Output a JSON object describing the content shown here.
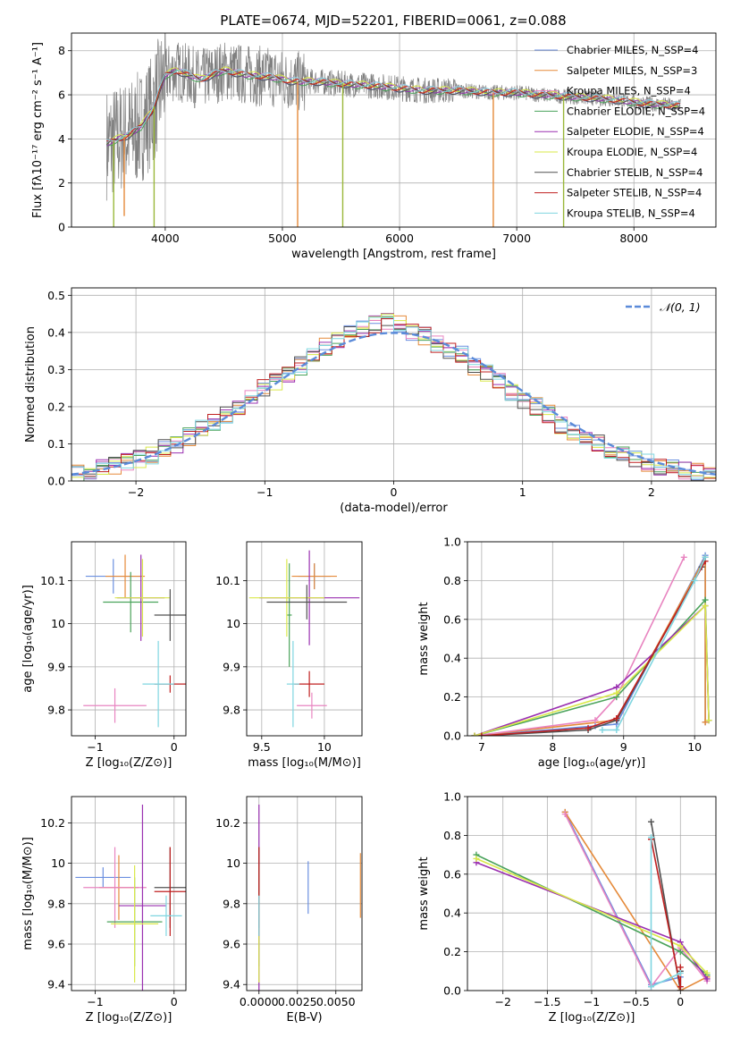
{
  "figure": {
    "title": "PLATE=0674, MJD=52201, FIBERID=0061, z=0.088"
  },
  "series_colors": [
    "#6b8fe0",
    "#e58a3a",
    "#e884c0",
    "#4aa35b",
    "#9a30b0",
    "#d9e84a",
    "#505050",
    "#c02020",
    "#7fd6e0"
  ],
  "chart_data": [
    {
      "id": "spectrum",
      "type": "line",
      "xlabel": "wavelength [Angstrom, rest frame]",
      "ylabel": "Flux [fλ10⁻¹⁷ erg cm⁻² s⁻¹ A⁻¹]",
      "xlim": [
        3200,
        8700
      ],
      "ylim": [
        0,
        8.8
      ],
      "xticks": [
        4000,
        5000,
        6000,
        7000,
        8000
      ],
      "yticks": [
        0,
        2,
        4,
        6,
        8
      ],
      "legend": "upper-right",
      "series": [
        {
          "name": "Chabrier MILES, N_SSP=4",
          "color": "#6b8fe0"
        },
        {
          "name": "Salpeter MILES, N_SSP=3",
          "color": "#e58a3a"
        },
        {
          "name": "Kroupa MILES, N_SSP=4",
          "color": "#e884c0"
        },
        {
          "name": "Chabrier ELODIE, N_SSP=4",
          "color": "#4aa35b"
        },
        {
          "name": "Salpeter ELODIE, N_SSP=4",
          "color": "#9a30b0"
        },
        {
          "name": "Kroupa ELODIE, N_SSP=4",
          "color": "#d9e84a"
        },
        {
          "name": "Chabrier STELIB, N_SSP=4",
          "color": "#505050"
        },
        {
          "name": "Salpeter STELIB, N_SSP=4",
          "color": "#c02020"
        },
        {
          "name": "Kroupa STELIB, N_SSP=4",
          "color": "#7fd6e0"
        }
      ],
      "continuum": {
        "x": [
          3500,
          3600,
          3700,
          3800,
          3900,
          4000,
          4100,
          4200,
          4300,
          4500,
          4700,
          4900,
          5100,
          5300,
          5500,
          5800,
          6000,
          6200,
          6500,
          6800,
          7000,
          7200,
          7500,
          7800,
          8100,
          8400
        ],
        "y": [
          3.8,
          4.0,
          4.2,
          4.6,
          5.4,
          6.9,
          7.1,
          6.9,
          6.7,
          7.1,
          6.9,
          6.8,
          6.6,
          6.6,
          6.5,
          6.4,
          6.3,
          6.2,
          6.2,
          6.1,
          6.1,
          6.0,
          5.9,
          5.8,
          5.6,
          5.5
        ]
      },
      "spikes": [
        {
          "x": 3560,
          "y": 0
        },
        {
          "x": 3650,
          "y": 0.5
        },
        {
          "x": 3905,
          "y": 0
        },
        {
          "x": 5130,
          "y": 0
        },
        {
          "x": 5515,
          "y": 0
        },
        {
          "x": 6800,
          "y": 0
        },
        {
          "x": 7400,
          "y": 0
        }
      ]
    },
    {
      "id": "residuals",
      "type": "line",
      "xlabel": "(data-model)/error",
      "ylabel": "Normed distribution",
      "xlim": [
        -2.5,
        2.5
      ],
      "ylim": [
        0,
        0.52
      ],
      "xticks": [
        -2,
        -1,
        0,
        1,
        2
      ],
      "yticks": [
        0.0,
        0.1,
        0.2,
        0.3,
        0.4,
        0.5
      ],
      "legend": "upper-right",
      "normal_label": "𝒩(0, 1)",
      "normal_color": "#5b8bd9",
      "hist_base": [
        0.02,
        0.025,
        0.035,
        0.04,
        0.05,
        0.06,
        0.07,
        0.09,
        0.1,
        0.12,
        0.14,
        0.16,
        0.18,
        0.2,
        0.22,
        0.25,
        0.27,
        0.29,
        0.31,
        0.34,
        0.36,
        0.38,
        0.4,
        0.41,
        0.42,
        0.43,
        0.42,
        0.4,
        0.39,
        0.37,
        0.35,
        0.34,
        0.31,
        0.29,
        0.27,
        0.24,
        0.22,
        0.2,
        0.18,
        0.15,
        0.13,
        0.11,
        0.1,
        0.08,
        0.07,
        0.06,
        0.05,
        0.04,
        0.035,
        0.03,
        0.025,
        0.02
      ]
    },
    {
      "id": "age-vs-Z",
      "type": "scatter",
      "xlabel": "Z [log₁₀(Z/Z⊙)]",
      "ylabel": "age  [log₁₀(age/yr)]",
      "xlim": [
        -1.3,
        0.15
      ],
      "ylim": [
        9.74,
        10.19
      ],
      "xticks": [
        -1,
        0
      ],
      "yticks": [
        9.8,
        9.9,
        10.0,
        10.1
      ],
      "points": [
        {
          "x": -0.77,
          "y": 10.11,
          "xerr": 0.35,
          "yerr": 0.04,
          "s": 0
        },
        {
          "x": -0.62,
          "y": 10.11,
          "xerr": 0.25,
          "yerr": 0.05,
          "s": 1
        },
        {
          "x": -0.75,
          "y": 9.81,
          "xerr": 0.4,
          "yerr": 0.04,
          "s": 2
        },
        {
          "x": -0.55,
          "y": 10.05,
          "xerr": 0.35,
          "yerr": 0.07,
          "s": 3
        },
        {
          "x": -0.42,
          "y": 10.06,
          "xerr": 0.3,
          "yerr": 0.1,
          "s": 4
        },
        {
          "x": -0.4,
          "y": 10.06,
          "xerr": 0.35,
          "yerr": 0.09,
          "s": 5
        },
        {
          "x": -0.05,
          "y": 10.02,
          "xerr": 0.2,
          "yerr": 0.06,
          "s": 6
        },
        {
          "x": -0.05,
          "y": 9.86,
          "xerr": 0.2,
          "yerr": 0.02,
          "s": 7
        },
        {
          "x": -0.2,
          "y": 9.86,
          "xerr": 0.2,
          "yerr": 0.1,
          "s": 8
        }
      ]
    },
    {
      "id": "age-vs-mass",
      "type": "scatter",
      "xlabel": "mass [log₁₀(M/M⊙)]",
      "ylabel": "",
      "xlim": [
        9.38,
        10.3
      ],
      "ylim": [
        9.74,
        10.19
      ],
      "xticks": [
        9.5,
        10.0
      ],
      "yticks": [
        9.8,
        9.9,
        10.0,
        10.1
      ],
      "points": [
        {
          "x": 9.92,
          "y": 10.11,
          "xerr": 0.13,
          "yerr": 0.03,
          "s": 0
        },
        {
          "x": 9.92,
          "y": 10.11,
          "xerr": 0.18,
          "yerr": 0.03,
          "s": 1
        },
        {
          "x": 9.9,
          "y": 9.81,
          "xerr": 0.12,
          "yerr": 0.03,
          "s": 2
        },
        {
          "x": 9.72,
          "y": 10.02,
          "xerr": 0.02,
          "yerr": 0.12,
          "s": 3
        },
        {
          "x": 9.88,
          "y": 10.06,
          "xerr": 0.4,
          "yerr": 0.11,
          "s": 4
        },
        {
          "x": 9.7,
          "y": 10.06,
          "xerr": 0.3,
          "yerr": 0.09,
          "s": 5
        },
        {
          "x": 9.86,
          "y": 10.05,
          "xerr": 0.32,
          "yerr": 0.04,
          "s": 6
        },
        {
          "x": 9.88,
          "y": 9.86,
          "xerr": 0.12,
          "yerr": 0.03,
          "s": 7
        },
        {
          "x": 9.75,
          "y": 9.86,
          "xerr": 0.05,
          "yerr": 0.1,
          "s": 8
        }
      ]
    },
    {
      "id": "weight-vs-age",
      "type": "line",
      "xlabel": "age  [log₁₀(age/yr)]",
      "ylabel": "mass weight",
      "xlim": [
        6.8,
        10.3
      ],
      "ylim": [
        0,
        1.0
      ],
      "xticks": [
        7,
        8,
        9,
        10
      ],
      "yticks": [
        0.0,
        0.2,
        0.4,
        0.6,
        0.8,
        1.0
      ],
      "series": [
        {
          "s": 0,
          "x": [
            6.9,
            8.6,
            8.9,
            10.15,
            10.15
          ],
          "y": [
            0.0,
            0.05,
            0.06,
            0.93,
            0.07
          ]
        },
        {
          "s": 1,
          "x": [
            6.9,
            8.9,
            10.15,
            10.15
          ],
          "y": [
            0.0,
            0.08,
            0.92,
            0.07
          ]
        },
        {
          "s": 2,
          "x": [
            6.9,
            8.6,
            8.9,
            9.85
          ],
          "y": [
            0.0,
            0.08,
            0.2,
            0.92
          ]
        },
        {
          "s": 3,
          "x": [
            6.9,
            8.9,
            10.15,
            10.2
          ],
          "y": [
            0.0,
            0.2,
            0.7,
            0.08
          ]
        },
        {
          "s": 4,
          "x": [
            6.9,
            8.9,
            10.15,
            10.2
          ],
          "y": [
            0.0,
            0.25,
            0.67,
            0.08
          ]
        },
        {
          "s": 5,
          "x": [
            6.9,
            8.9,
            10.15,
            10.2
          ],
          "y": [
            0.0,
            0.22,
            0.67,
            0.08
          ]
        },
        {
          "s": 6,
          "x": [
            7.0,
            8.5,
            8.9,
            10.1
          ],
          "y": [
            0.0,
            0.03,
            0.08,
            0.87
          ]
        },
        {
          "s": 7,
          "x": [
            7.0,
            8.5,
            8.9,
            10.15
          ],
          "y": [
            0.0,
            0.04,
            0.09,
            0.9
          ]
        },
        {
          "s": 8,
          "x": [
            8.7,
            8.9,
            10.0,
            10.15
          ],
          "y": [
            0.03,
            0.03,
            0.8,
            0.92
          ]
        }
      ]
    },
    {
      "id": "mass-vs-Z",
      "type": "scatter",
      "xlabel": "Z [log₁₀(Z/Z⊙)]",
      "ylabel": "mass [log₁₀(M/M⊙)]",
      "xlim": [
        -1.3,
        0.15
      ],
      "ylim": [
        9.37,
        10.33
      ],
      "xticks": [
        -1,
        0
      ],
      "yticks": [
        9.4,
        9.6,
        9.8,
        10.0,
        10.2
      ],
      "points": [
        {
          "x": -0.9,
          "y": 9.93,
          "xerr": 0.35,
          "yerr": 0.05,
          "s": 0
        },
        {
          "x": -0.7,
          "y": 9.88,
          "xerr": 0.25,
          "yerr": 0.16,
          "s": 1
        },
        {
          "x": -0.75,
          "y": 9.88,
          "xerr": 0.4,
          "yerr": 0.2,
          "s": 2
        },
        {
          "x": -0.5,
          "y": 9.71,
          "xerr": 0.35,
          "yerr": 0.22,
          "s": 3
        },
        {
          "x": -0.4,
          "y": 9.79,
          "xerr": 0.3,
          "yerr": 0.5,
          "s": 4
        },
        {
          "x": -0.5,
          "y": 9.7,
          "xerr": 0.3,
          "yerr": 0.29,
          "s": 5
        },
        {
          "x": -0.05,
          "y": 9.88,
          "xerr": 0.2,
          "yerr": 0.2,
          "s": 6
        },
        {
          "x": -0.05,
          "y": 9.86,
          "xerr": 0.2,
          "yerr": 0.22,
          "s": 7
        },
        {
          "x": -0.1,
          "y": 9.74,
          "xerr": 0.2,
          "yerr": 0.1,
          "s": 8
        }
      ]
    },
    {
      "id": "mass-vs-EBV",
      "type": "scatter",
      "xlabel": "E(B-V)",
      "ylabel": "",
      "xlim": [
        -0.0008,
        0.0067
      ],
      "ylim": [
        9.37,
        10.33
      ],
      "xticks": [
        0.0,
        0.0025,
        0.005
      ],
      "xtick_labels": [
        "0.0000",
        "0.0025",
        "0.0050"
      ],
      "yticks": [
        9.4,
        9.6,
        9.8,
        10.0,
        10.2
      ],
      "points": [
        {
          "x": 0.0032,
          "y": 9.88,
          "xerr": 0,
          "yerr": 0.13,
          "s": 0
        },
        {
          "x": 0.0066,
          "y": 9.89,
          "xerr": 0,
          "yerr": 0.16,
          "s": 1
        },
        {
          "x": 0.0,
          "y": 9.88,
          "xerr": 0,
          "yerr": 0.2,
          "s": 2
        },
        {
          "x": 0.0,
          "y": 9.71,
          "xerr": 0,
          "yerr": 0.22,
          "s": 3
        },
        {
          "x": 0.0,
          "y": 9.79,
          "xerr": 0,
          "yerr": 0.5,
          "s": 4
        },
        {
          "x": 0.0,
          "y": 9.7,
          "xerr": 0,
          "yerr": 0.29,
          "s": 5
        },
        {
          "x": 0.0,
          "y": 9.88,
          "xerr": 0,
          "yerr": 0.2,
          "s": 6
        },
        {
          "x": 0.0,
          "y": 9.86,
          "xerr": 0,
          "yerr": 0.22,
          "s": 7
        },
        {
          "x": 0.0,
          "y": 9.74,
          "xerr": 0,
          "yerr": 0.1,
          "s": 8
        }
      ]
    },
    {
      "id": "weight-vs-Z",
      "type": "line",
      "xlabel": "Z [log₁₀(Z/Z⊙)]",
      "ylabel": "mass weight",
      "xlim": [
        -2.4,
        0.4
      ],
      "ylim": [
        0,
        1.0
      ],
      "xticks": [
        -2.0,
        -1.5,
        -1.0,
        -0.5,
        0.0
      ],
      "yticks": [
        0.0,
        0.2,
        0.4,
        0.6,
        0.8,
        1.0
      ],
      "series": [
        {
          "s": 0,
          "x": [
            -1.3,
            -0.33,
            0.0,
            0.0
          ],
          "y": [
            0.92,
            0.03,
            0.07,
            0.0
          ]
        },
        {
          "s": 1,
          "x": [
            -1.3,
            0.0,
            0.3
          ],
          "y": [
            0.92,
            0.0,
            0.07
          ]
        },
        {
          "s": 2,
          "x": [
            -1.3,
            -0.33,
            0.0,
            0.3
          ],
          "y": [
            0.91,
            0.02,
            0.22,
            0.05
          ]
        },
        {
          "s": 3,
          "x": [
            -2.3,
            0.0,
            0.3
          ],
          "y": [
            0.7,
            0.2,
            0.08
          ]
        },
        {
          "s": 4,
          "x": [
            -2.3,
            0.0,
            0.3
          ],
          "y": [
            0.66,
            0.25,
            0.06
          ]
        },
        {
          "s": 5,
          "x": [
            -2.3,
            0.0,
            0.3
          ],
          "y": [
            0.68,
            0.23,
            0.09
          ]
        },
        {
          "s": 6,
          "x": [
            -0.33,
            0.0,
            0.0
          ],
          "y": [
            0.87,
            0.0,
            0.1
          ]
        },
        {
          "s": 7,
          "x": [
            -0.33,
            0.0,
            0.0
          ],
          "y": [
            0.78,
            0.02,
            0.12
          ]
        },
        {
          "s": 8,
          "x": [
            -0.33,
            -0.33,
            0.0
          ],
          "y": [
            0.79,
            0.02,
            0.09
          ]
        }
      ]
    }
  ]
}
